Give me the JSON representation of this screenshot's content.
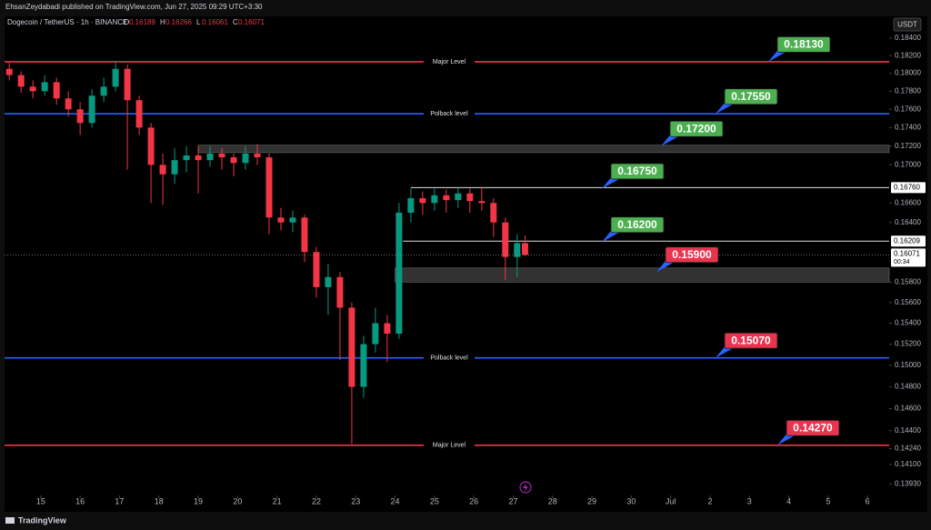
{
  "header": {
    "publisher": "EhsanZeydabadi published on TradingView.com, Jun 27, 2025 09:29 UTC+3:30"
  },
  "footer": {
    "brand": "TradingView"
  },
  "chart_data": {
    "type": "candlestick",
    "symbol": "Dogecoin / TetherUS · 1h · BINANCE",
    "currency": "USDT",
    "ohlc_labels": [
      "O",
      "H",
      "L",
      "C"
    ],
    "log_scale": true,
    "up_color": "#089981",
    "down_color": "#f23645",
    "x": [
      14.2,
      14.5,
      14.8,
      15.1,
      15.4,
      15.7,
      16.0,
      16.3,
      16.6,
      16.9,
      17.2,
      17.5,
      17.8,
      18.1,
      18.4,
      18.7,
      19.0,
      19.3,
      19.6,
      19.9,
      20.2,
      20.5,
      20.8,
      21.1,
      21.4,
      21.7,
      22.0,
      22.3,
      22.6,
      22.9,
      23.2,
      23.5,
      23.8,
      24.1,
      24.4,
      24.7,
      25.0,
      25.3,
      25.6,
      25.9,
      26.2,
      26.5,
      26.8,
      27.1,
      27.3
    ],
    "open": [
      0.1805,
      0.1798,
      0.1785,
      0.178,
      0.179,
      0.1772,
      0.176,
      0.1745,
      0.1775,
      0.1785,
      0.1805,
      0.177,
      0.174,
      0.17,
      0.169,
      0.1705,
      0.171,
      0.1705,
      0.1712,
      0.1708,
      0.1702,
      0.1712,
      0.1708,
      0.1645,
      0.164,
      0.1645,
      0.161,
      0.1575,
      0.1585,
      0.1555,
      0.148,
      0.152,
      0.154,
      0.153,
      0.165,
      0.1665,
      0.166,
      0.1668,
      0.1663,
      0.167,
      0.1662,
      0.166,
      0.164,
      0.1605,
      0.16189
    ],
    "high": [
      0.1812,
      0.1802,
      0.1792,
      0.1798,
      0.1795,
      0.178,
      0.1768,
      0.1782,
      0.1795,
      0.1813,
      0.181,
      0.1775,
      0.1745,
      0.1712,
      0.1718,
      0.172,
      0.172,
      0.172,
      0.1718,
      0.1712,
      0.172,
      0.1722,
      0.1712,
      0.1655,
      0.1652,
      0.1648,
      0.1615,
      0.1598,
      0.159,
      0.156,
      0.1528,
      0.1555,
      0.1548,
      0.166,
      0.1675,
      0.1672,
      0.1675,
      0.1674,
      0.1676,
      0.1675,
      0.1676,
      0.1665,
      0.1645,
      0.1628,
      0.16266
    ],
    "low": [
      0.1792,
      0.1778,
      0.1772,
      0.1775,
      0.1765,
      0.1752,
      0.1732,
      0.174,
      0.1768,
      0.178,
      0.1695,
      0.1732,
      0.166,
      0.1658,
      0.168,
      0.1692,
      0.167,
      0.1698,
      0.1695,
      0.1688,
      0.1695,
      0.17,
      0.1628,
      0.1632,
      0.163,
      0.16,
      0.1565,
      0.1548,
      0.1505,
      0.1428,
      0.147,
      0.1512,
      0.1503,
      0.1525,
      0.164,
      0.1648,
      0.1652,
      0.165,
      0.1655,
      0.165,
      0.1652,
      0.1625,
      0.1582,
      0.1585,
      0.16061
    ],
    "close": [
      0.1798,
      0.1785,
      0.178,
      0.179,
      0.1772,
      0.176,
      0.1745,
      0.1775,
      0.1785,
      0.1805,
      0.177,
      0.174,
      0.17,
      0.169,
      0.1705,
      0.171,
      0.1705,
      0.1712,
      0.1708,
      0.1702,
      0.1712,
      0.1708,
      0.1645,
      0.164,
      0.1645,
      0.161,
      0.1575,
      0.1585,
      0.1555,
      0.148,
      0.152,
      0.154,
      0.153,
      0.165,
      0.1665,
      0.166,
      0.1668,
      0.1663,
      0.167,
      0.1662,
      0.166,
      0.164,
      0.1605,
      0.16189,
      0.16071
    ],
    "xlim": [
      14.08,
      36.55
    ],
    "xticks": [
      15,
      16,
      17,
      18,
      19,
      20,
      21,
      22,
      23,
      24,
      25,
      26,
      27,
      28,
      29,
      30,
      {
        "value": 31,
        "label": "Jul"
      },
      {
        "value": 32,
        "label": "2"
      },
      {
        "value": 33,
        "label": "3"
      },
      {
        "value": 34,
        "label": "4"
      },
      {
        "value": 35,
        "label": "5"
      },
      {
        "value": 36,
        "label": "6"
      }
    ],
    "ylim": [
      0.1383,
      0.1863
    ],
    "yticks": [
      {
        "value": 0.184,
        "label": "0.18400"
      },
      {
        "value": 0.182,
        "label": "0.18200"
      },
      {
        "value": 0.18,
        "label": "0.18000"
      },
      {
        "value": 0.178,
        "label": "0.17800"
      },
      {
        "value": 0.176,
        "label": "0.17600"
      },
      {
        "value": 0.174,
        "label": "0.17400"
      },
      {
        "value": 0.172,
        "label": "0.17200"
      },
      {
        "value": 0.17,
        "label": "0.17000"
      },
      {
        "value": 0.166,
        "label": "0.16600"
      },
      {
        "value": 0.164,
        "label": "0.16400"
      },
      {
        "value": 0.158,
        "label": "0.15800"
      },
      {
        "value": 0.156,
        "label": "0.15600"
      },
      {
        "value": 0.154,
        "label": "0.15400"
      },
      {
        "value": 0.152,
        "label": "0.15200"
      },
      {
        "value": 0.15,
        "label": "0.15000"
      },
      {
        "value": 0.148,
        "label": "0.14800"
      },
      {
        "value": 0.146,
        "label": "0.14600"
      },
      {
        "value": 0.144,
        "label": "0.14400"
      },
      {
        "value": 0.1424,
        "label": "0.14240"
      },
      {
        "value": 0.141,
        "label": "0.14100"
      },
      {
        "value": 0.1393,
        "label": "0.13930"
      }
    ],
    "levels": [
      {
        "value": 0.1813,
        "label": "Major Level",
        "color": "#f23645"
      },
      {
        "value": 0.1755,
        "label": "Polback level",
        "color": "#2962ff"
      },
      {
        "value": 0.1507,
        "label": "Polback level",
        "color": "#2962ff"
      },
      {
        "value": 0.1427,
        "label": "Major Level",
        "color": "#f23645"
      }
    ],
    "zones": [
      {
        "from": 0.1713,
        "to": 0.1721,
        "start": 19.0
      },
      {
        "from": 0.158,
        "to": 0.1594,
        "start": 24.0
      }
    ],
    "lines": [
      {
        "value": 0.1676,
        "label": "0.16760",
        "start": 24.4
      },
      {
        "value": 0.16209,
        "label": "0.16209",
        "start": 24.2
      }
    ],
    "last_price": {
      "value": 0.16071,
      "label": "0.16071",
      "countdown": "00:34"
    },
    "callouts": [
      {
        "value": 0.1813,
        "label": "0.18130",
        "color": "#4caf50"
      },
      {
        "value": 0.1755,
        "label": "0.17550",
        "color": "#4caf50"
      },
      {
        "value": 0.172,
        "label": "0.17200",
        "color": "#4caf50"
      },
      {
        "value": 0.1675,
        "label": "0.16750",
        "color": "#4caf50"
      },
      {
        "value": 0.162,
        "label": "0.16200",
        "color": "#4caf50"
      },
      {
        "value": 0.159,
        "label": "0.15900",
        "color": "#e8344e"
      },
      {
        "value": 0.1507,
        "label": "0.15070",
        "color": "#e8344e"
      },
      {
        "value": 0.1427,
        "label": "0.14270",
        "color": "#e8344e"
      }
    ]
  }
}
